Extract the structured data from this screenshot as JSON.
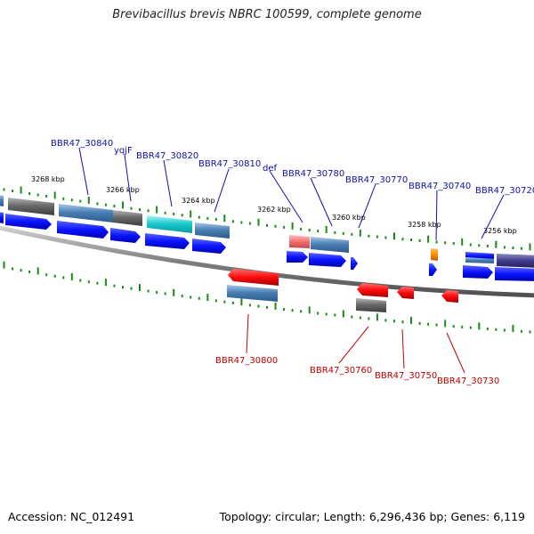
{
  "title": "Brevibacillus brevis NBRC 100599, complete genome",
  "footer": {
    "accession": "Accession: NC_012491",
    "stats": "Topology: circular; Length: 6,296,436 bp; Genes: 6,119"
  },
  "colors": {
    "forward_label": "#1010b0",
    "reverse_label": "#c00000",
    "backbone": "#808080",
    "tick": "#1a8a1a",
    "forward_arrow": "#0a14ff",
    "reverse_arrow": "#ff0a0a"
  },
  "ticks": {
    "upper": [
      "3268 kbp",
      "3266 kbp",
      "3264 kbp",
      "3262 kbp",
      "3260 kbp",
      "3258 kbp",
      "3256 kbp"
    ]
  },
  "genes": {
    "forward": [
      "BBR47_30840",
      "yqjF",
      "BBR47_30820",
      "BBR47_30810",
      "def",
      "BBR47_30780",
      "BBR47_30770",
      "BBR47_30740",
      "BBR47_30720"
    ],
    "reverse": [
      "BBR47_30800",
      "BBR47_30760",
      "BBR47_30750",
      "BBR47_30730"
    ]
  }
}
